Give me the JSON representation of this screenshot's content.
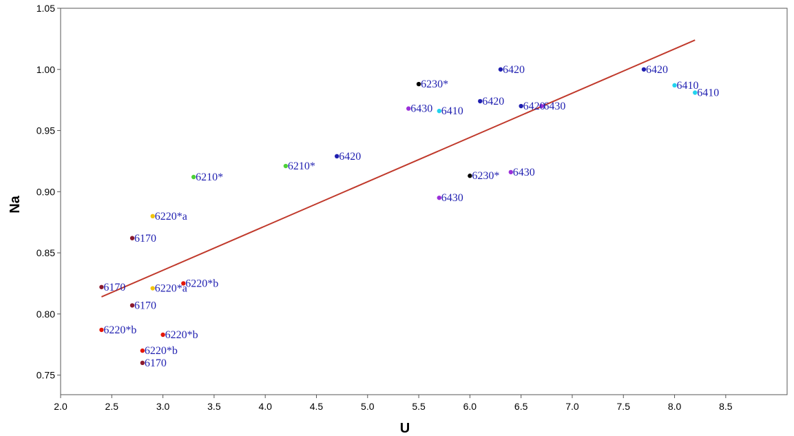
{
  "chart_data": {
    "type": "scatter",
    "title": "",
    "xlabel": "U",
    "ylabel": "Na",
    "xlim": [
      2.0,
      9.1
    ],
    "ylim": [
      0.734,
      1.05
    ],
    "x_ticks": [
      "2.0",
      "2.5",
      "3.0",
      "3.5",
      "4.0",
      "4.5",
      "5.0",
      "5.5",
      "6.0",
      "6.5",
      "7.0",
      "7.5",
      "8.0",
      "8.5"
    ],
    "y_ticks": [
      "0.75",
      "0.80",
      "0.85",
      "0.90",
      "0.95",
      "1.00",
      "1.05"
    ],
    "grid": false,
    "legend": "none",
    "colors": {
      "label": "#1f1fb0",
      "trend_line": "#c0392b",
      "axis": "#555555"
    },
    "points": [
      {
        "x": 2.4,
        "y": 0.822,
        "label": "6170",
        "color": "#8b1a2e"
      },
      {
        "x": 2.7,
        "y": 0.862,
        "label": "6170",
        "color": "#8b1a2e"
      },
      {
        "x": 2.7,
        "y": 0.807,
        "label": "6170",
        "color": "#8b1a2e"
      },
      {
        "x": 2.8,
        "y": 0.76,
        "label": "6170",
        "color": "#8b1a2e"
      },
      {
        "x": 3.3,
        "y": 0.912,
        "label": "6210*",
        "color": "#4cd137"
      },
      {
        "x": 4.2,
        "y": 0.921,
        "label": "6210*",
        "color": "#4cd137"
      },
      {
        "x": 2.9,
        "y": 0.88,
        "label": "6220*a",
        "color": "#f1c40f"
      },
      {
        "x": 2.9,
        "y": 0.821,
        "label": "6220*a",
        "color": "#f1c40f"
      },
      {
        "x": 3.2,
        "y": 0.825,
        "label": "6220*b",
        "color": "#e3170a"
      },
      {
        "x": 2.4,
        "y": 0.787,
        "label": "6220*b",
        "color": "#e3170a"
      },
      {
        "x": 3.0,
        "y": 0.783,
        "label": "6220*b",
        "color": "#e3170a"
      },
      {
        "x": 2.8,
        "y": 0.77,
        "label": "6220*b",
        "color": "#e3170a"
      },
      {
        "x": 5.5,
        "y": 0.988,
        "label": "6230*",
        "color": "#000000"
      },
      {
        "x": 6.0,
        "y": 0.913,
        "label": "6230*",
        "color": "#000000"
      },
      {
        "x": 5.7,
        "y": 0.966,
        "label": "6410",
        "color": "#22d3ee"
      },
      {
        "x": 8.0,
        "y": 0.987,
        "label": "6410",
        "color": "#22d3ee"
      },
      {
        "x": 8.2,
        "y": 0.981,
        "label": "6410",
        "color": "#22d3ee"
      },
      {
        "x": 4.7,
        "y": 0.929,
        "label": "6420",
        "color": "#1f1fb0"
      },
      {
        "x": 6.3,
        "y": 1.0,
        "label": "6420",
        "color": "#1f1fb0"
      },
      {
        "x": 6.1,
        "y": 0.974,
        "label": "6420",
        "color": "#1f1fb0"
      },
      {
        "x": 6.5,
        "y": 0.97,
        "label": "6420",
        "color": "#1f1fb0"
      },
      {
        "x": 7.7,
        "y": 1.0,
        "label": "6420",
        "color": "#1f1fb0"
      },
      {
        "x": 5.4,
        "y": 0.968,
        "label": "6430",
        "color": "#9b30d9"
      },
      {
        "x": 6.7,
        "y": 0.97,
        "label": "6430",
        "color": "#9b30d9"
      },
      {
        "x": 6.4,
        "y": 0.916,
        "label": "6430",
        "color": "#9b30d9"
      },
      {
        "x": 5.7,
        "y": 0.895,
        "label": "6430",
        "color": "#9b30d9"
      }
    ],
    "trend_line": {
      "x": [
        2.4,
        8.2
      ],
      "y": [
        0.814,
        1.024
      ]
    }
  }
}
